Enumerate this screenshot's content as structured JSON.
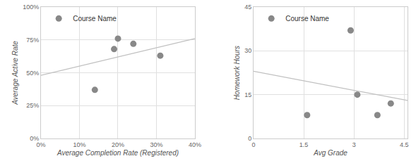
{
  "chart_data": [
    {
      "type": "scatter",
      "xlabel": "Average Completion Rate (Registered)",
      "ylabel": "Average Active Rate",
      "xlim": [
        0.0,
        0.4
      ],
      "ylim": [
        0.0,
        1.0
      ],
      "xticks": [
        {
          "value": 0.0,
          "label": "0%"
        },
        {
          "value": 0.1,
          "label": "10%"
        },
        {
          "value": 0.2,
          "label": "20%"
        },
        {
          "value": 0.3,
          "label": "30%"
        },
        {
          "value": 0.4,
          "label": "40%"
        }
      ],
      "yticks": [
        {
          "value": 0.0,
          "label": "0%"
        },
        {
          "value": 0.25,
          "label": "25%"
        },
        {
          "value": 0.5,
          "label": "50%"
        },
        {
          "value": 0.75,
          "label": "75%"
        },
        {
          "value": 1.0,
          "label": "100%"
        }
      ],
      "grid": true,
      "legend": "upper left",
      "series": [
        {
          "type": "line",
          "color": "#c0c0c0",
          "line_style": "solid",
          "x": [
            0.0,
            0.4
          ],
          "values": [
            0.48,
            0.76
          ]
        },
        {
          "type": "scatter",
          "name": "Course Name",
          "color": "#888888",
          "marker": "circle",
          "x": [
            0.14,
            0.19,
            0.2,
            0.24,
            0.31
          ],
          "values": [
            0.37,
            0.68,
            0.76,
            0.72,
            0.63
          ]
        }
      ]
    },
    {
      "type": "scatter",
      "xlabel": "Avg Grade",
      "ylabel": "Homework Hours",
      "xlim": [
        0,
        4.6
      ],
      "ylim": [
        0,
        45
      ],
      "xticks": [
        0,
        1.5,
        3,
        4.5
      ],
      "yticks": [
        0,
        15,
        30,
        45
      ],
      "grid": true,
      "legend": "upper left",
      "series": [
        {
          "type": "line",
          "color": "#c0c0c0",
          "line_style": "solid",
          "x": [
            0,
            4.6
          ],
          "values": [
            23,
            13
          ]
        },
        {
          "type": "scatter",
          "name": "Course Name",
          "color": "#888888",
          "marker": "circle",
          "x": [
            1.6,
            2.9,
            3.1,
            3.7,
            4.1
          ],
          "values": [
            8,
            37,
            15,
            8,
            12
          ]
        }
      ]
    }
  ]
}
